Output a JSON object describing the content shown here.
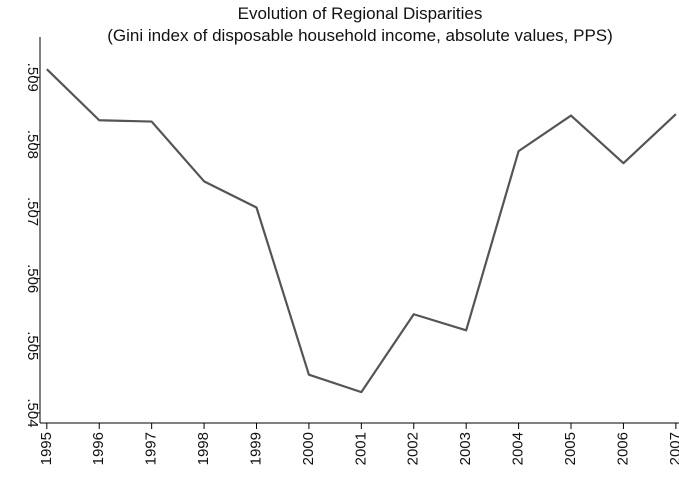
{
  "chart_data": {
    "type": "line",
    "title": "Evolution of Regional Disparities",
    "subtitle": "(Gini index of disposable household income, absolute values, PPS)",
    "x": [
      1995,
      1996,
      1997,
      1998,
      1999,
      2000,
      2001,
      2002,
      2003,
      2004,
      2005,
      2006,
      2007
    ],
    "series": [
      {
        "name": "Gini index",
        "color": "#555555",
        "values": [
          0.50912,
          0.50836,
          0.50834,
          0.50745,
          0.50706,
          0.50457,
          0.50431,
          0.50547,
          0.50523,
          0.5079,
          0.50843,
          0.50772,
          0.50845
        ]
      }
    ],
    "xlim": [
      1994.87,
      2007.06
    ],
    "xticks": [
      1995,
      1996,
      1997,
      1998,
      1999,
      2000,
      2001,
      2002,
      2003,
      2004,
      2005,
      2006,
      2007
    ],
    "ylim": [
      0.50385,
      0.5096
    ],
    "yticks": [
      {
        "value": 0.504,
        "label": ".504"
      },
      {
        "value": 0.505,
        "label": ".505"
      },
      {
        "value": 0.506,
        "label": ".506"
      },
      {
        "value": 0.507,
        "label": ".507"
      },
      {
        "value": 0.508,
        "label": ".508"
      },
      {
        "value": 0.509,
        "label": ".509"
      }
    ],
    "grid": false
  }
}
